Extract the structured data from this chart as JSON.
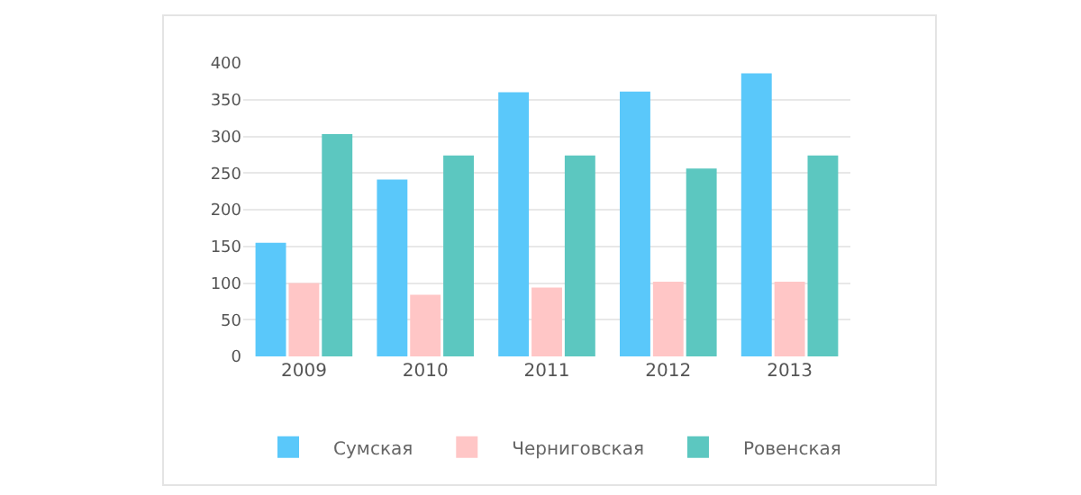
{
  "chart_data": {
    "type": "bar",
    "categories": [
      "2009",
      "2010",
      "2011",
      "2012",
      "2013"
    ],
    "series": [
      {
        "name": "Сумская",
        "color": "#5ac8fa",
        "values": [
          155,
          241,
          360,
          361,
          386
        ]
      },
      {
        "name": "Черниговская",
        "color": "#ffc6c6",
        "values": [
          100,
          84,
          94,
          102,
          102
        ]
      },
      {
        "name": "Ровенская",
        "color": "#5cc7c0",
        "values": [
          303,
          274,
          274,
          256,
          274
        ]
      }
    ],
    "ylim": [
      0,
      400
    ],
    "yticks": [
      0,
      50,
      100,
      150,
      200,
      250,
      300,
      350,
      400
    ],
    "grid": "y",
    "legend": "bottom"
  }
}
